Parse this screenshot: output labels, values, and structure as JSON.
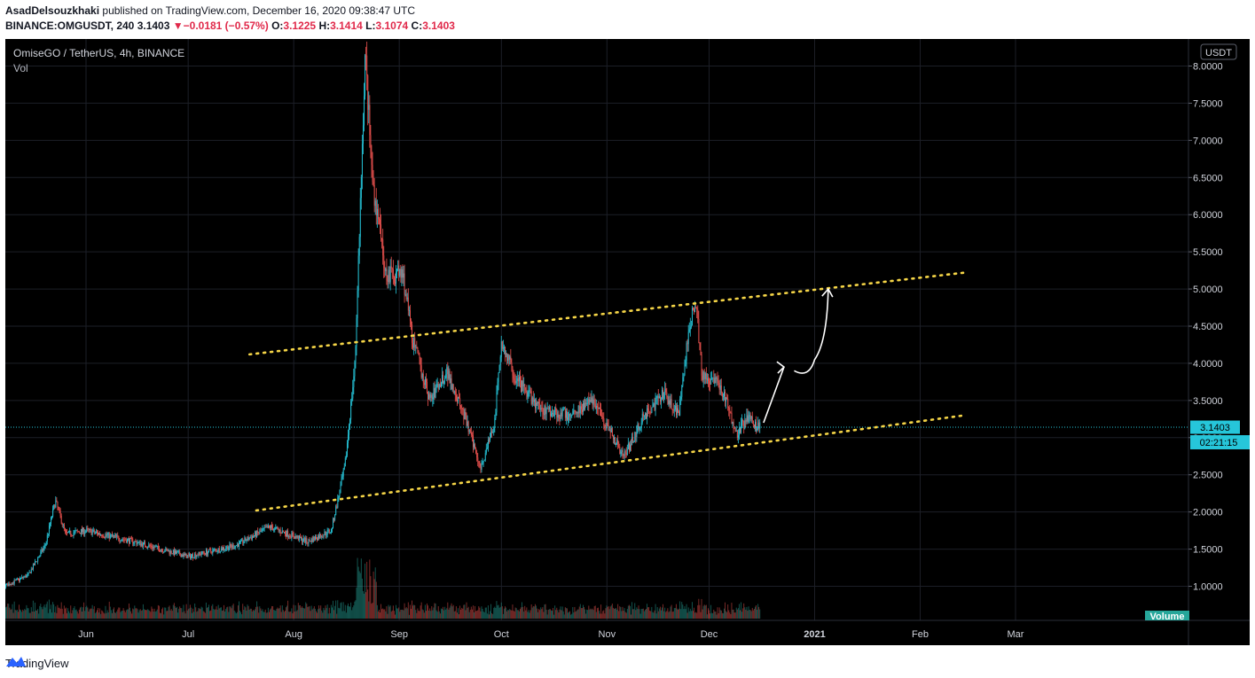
{
  "header": {
    "author": "AsadDelsouzkhaki",
    "published": "published on TradingView.com, December 16, 2020 09:38:47 UTC",
    "symbol": "BINANCE:OMGUSDT, 240",
    "last": "3.1403",
    "arrow": "▼",
    "change": "−0.0181 (−0.57%)",
    "o_label": "O:",
    "o_value": "3.1225",
    "h_label": "H:",
    "h_value": "3.1414",
    "l_label": "L:",
    "l_value": "3.1074",
    "c_label": "C:",
    "c_value": "3.1403"
  },
  "legend": {
    "title": "OmiseGO / TetherUS, 4h, BINANCE",
    "vol": "Vol"
  },
  "price_scale": {
    "currency": "USDT",
    "current_price": "3.1403",
    "countdown": "02:21:15",
    "volume_label": "Volume"
  },
  "footer": {
    "brand": "TradingView"
  },
  "colors": {
    "background": "#000000",
    "up": "#26c6da",
    "down": "#ef5350",
    "trendline": "#f5d547",
    "annotation": "#ffffff",
    "price_tag": "#26c6da"
  },
  "chart_data": {
    "type": "candlestick",
    "title": "OmiseGO / TetherUS, 4h, BINANCE",
    "x_ticks": [
      "Jun",
      "Jul",
      "Aug",
      "Sep",
      "Oct",
      "Nov",
      "Dec",
      "2021",
      "Feb",
      "Mar"
    ],
    "y_ticks": [
      "8.0000",
      "7.5000",
      "7.0000",
      "6.5000",
      "6.0000",
      "5.5000",
      "5.0000",
      "4.5000",
      "4.0000",
      "3.5000",
      "3.0000",
      "2.5000",
      "2.0000",
      "1.5000",
      "1.0000"
    ],
    "ylim": [
      0.55,
      8.4
    ],
    "xlim": [
      "2020-05-01",
      "2021-03-20"
    ],
    "current_price": 3.1403,
    "key_price_points": [
      {
        "date": "2020-05-01",
        "price": 0.85
      },
      {
        "date": "2020-05-15",
        "price": 1.15
      },
      {
        "date": "2020-05-20",
        "price": 1.55
      },
      {
        "date": "2020-05-23",
        "price": 2.15
      },
      {
        "date": "2020-05-26",
        "price": 1.7
      },
      {
        "date": "2020-06-01",
        "price": 1.75
      },
      {
        "date": "2020-06-15",
        "price": 1.6
      },
      {
        "date": "2020-07-01",
        "price": 1.4
      },
      {
        "date": "2020-07-15",
        "price": 1.55
      },
      {
        "date": "2020-07-25",
        "price": 1.8
      },
      {
        "date": "2020-08-05",
        "price": 1.6
      },
      {
        "date": "2020-08-12",
        "price": 1.75
      },
      {
        "date": "2020-08-16",
        "price": 2.6
      },
      {
        "date": "2020-08-19",
        "price": 4.0
      },
      {
        "date": "2020-08-22",
        "price": 8.2
      },
      {
        "date": "2020-08-24",
        "price": 6.5
      },
      {
        "date": "2020-08-28",
        "price": 5.2
      },
      {
        "date": "2020-09-02",
        "price": 5.2
      },
      {
        "date": "2020-09-05",
        "price": 4.3
      },
      {
        "date": "2020-09-10",
        "price": 3.5
      },
      {
        "date": "2020-09-15",
        "price": 3.9
      },
      {
        "date": "2020-09-20",
        "price": 3.3
      },
      {
        "date": "2020-09-25",
        "price": 2.6
      },
      {
        "date": "2020-09-29",
        "price": 3.2
      },
      {
        "date": "2020-10-01",
        "price": 4.3
      },
      {
        "date": "2020-10-05",
        "price": 3.8
      },
      {
        "date": "2020-10-12",
        "price": 3.4
      },
      {
        "date": "2020-10-20",
        "price": 3.3
      },
      {
        "date": "2020-10-28",
        "price": 3.5
      },
      {
        "date": "2020-11-03",
        "price": 3.0
      },
      {
        "date": "2020-11-06",
        "price": 2.75
      },
      {
        "date": "2020-11-12",
        "price": 3.3
      },
      {
        "date": "2020-11-18",
        "price": 3.6
      },
      {
        "date": "2020-11-22",
        "price": 3.3
      },
      {
        "date": "2020-11-25",
        "price": 4.4
      },
      {
        "date": "2020-11-27",
        "price": 4.9
      },
      {
        "date": "2020-11-29",
        "price": 3.8
      },
      {
        "date": "2020-12-03",
        "price": 3.8
      },
      {
        "date": "2020-12-06",
        "price": 3.5
      },
      {
        "date": "2020-12-09",
        "price": 3.05
      },
      {
        "date": "2020-12-12",
        "price": 3.25
      },
      {
        "date": "2020-12-16",
        "price": 3.14
      }
    ],
    "trendlines": [
      {
        "name": "upper",
        "from": {
          "date": "2020-07-19",
          "price": 4.12
        },
        "to": {
          "date": "2021-02-14",
          "price": 5.22
        }
      },
      {
        "name": "lower",
        "from": {
          "date": "2020-07-21",
          "price": 2.02
        },
        "to": {
          "date": "2021-02-14",
          "price": 3.3
        }
      }
    ],
    "annotation_arrow": [
      {
        "date": "2020-12-17",
        "price": 3.2
      },
      {
        "date": "2020-12-23",
        "price": 3.95
      },
      {
        "date": "2020-12-26",
        "price": 3.9
      },
      {
        "date": "2020-12-29",
        "price": 3.85
      },
      {
        "date": "2021-01-01",
        "price": 4.05
      },
      {
        "date": "2021-01-05",
        "price": 5.0
      }
    ]
  }
}
